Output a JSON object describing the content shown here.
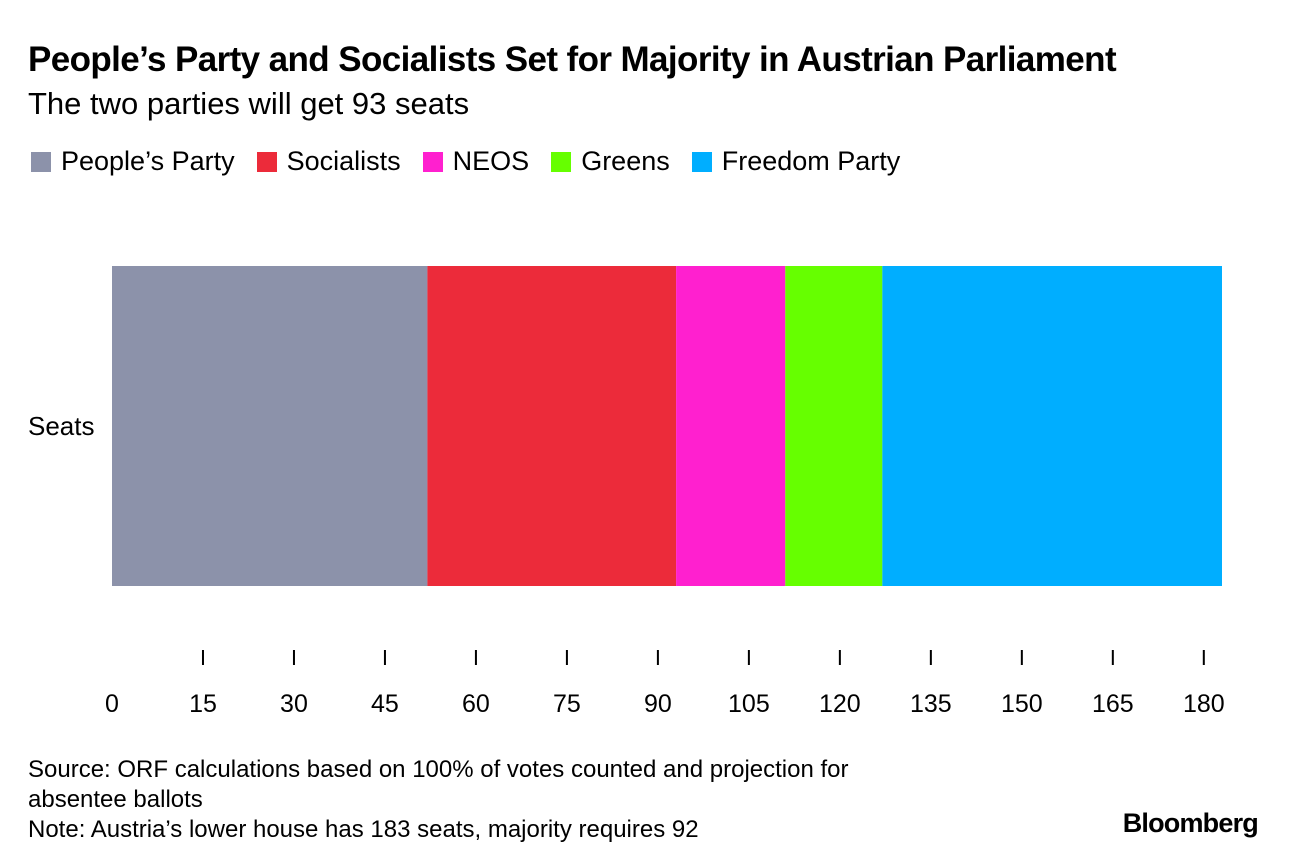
{
  "title": "People’s Party and Socialists Set for Majority in Austrian Parliament",
  "subtitle": "The two parties will get 93 seats",
  "footer": {
    "source_line1": "Source: ORF calculations based on 100% of votes counted and projection for",
    "source_line2": "absentee ballots",
    "note": "Note: Austria’s lower house has 183 seats, majority requires 92"
  },
  "brand": "Bloomberg",
  "chart_data": {
    "type": "bar",
    "orientation": "horizontal",
    "stacked": true,
    "categories": [
      "Seats"
    ],
    "series": [
      {
        "name": "People’s Party",
        "values": [
          52
        ],
        "color": "#8c92aa"
      },
      {
        "name": "Socialists",
        "values": [
          41
        ],
        "color": "#ec2b3a"
      },
      {
        "name": "NEOS",
        "values": [
          18
        ],
        "color": "#ff20cf"
      },
      {
        "name": "Greens",
        "values": [
          16
        ],
        "color": "#66ff00"
      },
      {
        "name": "Freedom Party",
        "values": [
          56
        ],
        "color": "#00aeff"
      }
    ],
    "xlim": [
      0,
      183
    ],
    "xticks": [
      0,
      15,
      30,
      45,
      60,
      75,
      90,
      105,
      120,
      135,
      150,
      165,
      180
    ],
    "xlabel": "",
    "ylabel": "",
    "legend_position": "top-left",
    "grid": false
  }
}
